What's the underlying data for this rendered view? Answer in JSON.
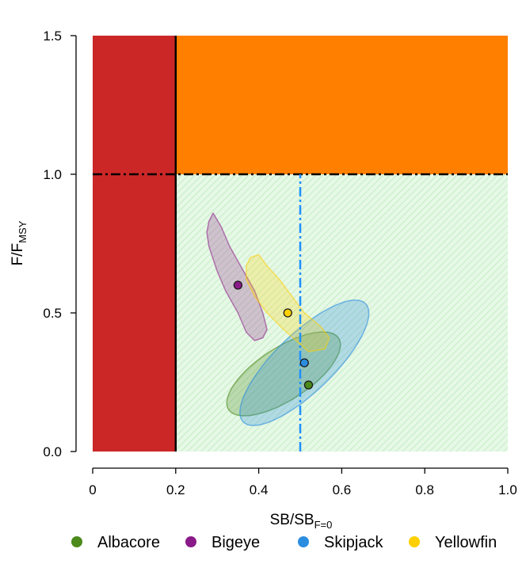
{
  "chart_data": {
    "type": "scatter",
    "title": "",
    "xlabel": {
      "main": "SB/SB",
      "sub": "F=0"
    },
    "ylabel": {
      "main": "F/F",
      "sub": "MSY"
    },
    "xlim": [
      0,
      1
    ],
    "ylim": [
      0,
      1.5
    ],
    "x_ticks": [
      "0",
      "0.2",
      "0.4",
      "0.6",
      "0.8",
      "1.0"
    ],
    "y_ticks": [
      "0.0",
      "0.5",
      "1.0",
      "1.5"
    ],
    "grid": false,
    "regions": [
      {
        "name": "sb-limit-zone",
        "x": [
          0,
          0.2
        ],
        "y": [
          0,
          1.5
        ],
        "color": "#cc2727"
      },
      {
        "name": "overfishing-zone",
        "x": [
          0.2,
          1.0
        ],
        "y": [
          1.0,
          1.5
        ],
        "color": "#ff8000"
      },
      {
        "name": "target-zone",
        "x": [
          0.2,
          1.0
        ],
        "y": [
          0,
          1.0
        ],
        "color": "#e4f7e4"
      }
    ],
    "reference_lines": [
      {
        "name": "limit-reference-point",
        "type": "vertical",
        "value": 0.2,
        "style": "solid",
        "color": "#000000"
      },
      {
        "name": "fmsy-line",
        "type": "horizontal",
        "value": 1.0,
        "style": "dashdot",
        "color": "#000000"
      },
      {
        "name": "target-reference-point",
        "type": "vertical",
        "value": 0.5,
        "style": "dashdot",
        "color": "#1e90ff"
      }
    ],
    "series": [
      {
        "name": "Albacore",
        "color": "#4b8a1b",
        "point": {
          "x": 0.52,
          "y": 0.24
        },
        "region": {
          "type": "ellipse",
          "center": [
            0.46,
            0.28
          ],
          "rx": 0.158,
          "ry": 0.063,
          "angle_deg": -33
        }
      },
      {
        "name": "Bigeye",
        "color": "#8b1a89",
        "point": {
          "x": 0.35,
          "y": 0.6
        },
        "region": {
          "type": "polygon",
          "points": [
            [
              0.28,
              0.83
            ],
            [
              0.29,
              0.86
            ],
            [
              0.31,
              0.81
            ],
            [
              0.33,
              0.74
            ],
            [
              0.36,
              0.66
            ],
            [
              0.39,
              0.58
            ],
            [
              0.41,
              0.5
            ],
            [
              0.42,
              0.44
            ],
            [
              0.41,
              0.41
            ],
            [
              0.39,
              0.4
            ],
            [
              0.37,
              0.43
            ],
            [
              0.35,
              0.5
            ],
            [
              0.32,
              0.58
            ],
            [
              0.3,
              0.65
            ],
            [
              0.28,
              0.74
            ],
            [
              0.275,
              0.79
            ]
          ]
        }
      },
      {
        "name": "Skipjack",
        "color": "#2b8de0",
        "point": {
          "x": 0.51,
          "y": 0.32
        },
        "region": {
          "type": "ellipse",
          "center": [
            0.51,
            0.32
          ],
          "rx": 0.205,
          "ry": 0.07,
          "angle_deg": -44
        }
      },
      {
        "name": "Yellowfin",
        "color": "#ffd000",
        "point": {
          "x": 0.47,
          "y": 0.5
        },
        "region": {
          "type": "polygon",
          "points": [
            [
              0.38,
              0.7
            ],
            [
              0.4,
              0.71
            ],
            [
              0.42,
              0.67
            ],
            [
              0.45,
              0.62
            ],
            [
              0.48,
              0.56
            ],
            [
              0.51,
              0.5
            ],
            [
              0.55,
              0.45
            ],
            [
              0.57,
              0.41
            ],
            [
              0.56,
              0.37
            ],
            [
              0.52,
              0.36
            ],
            [
              0.49,
              0.4
            ],
            [
              0.46,
              0.44
            ],
            [
              0.42,
              0.5
            ],
            [
              0.39,
              0.56
            ],
            [
              0.37,
              0.62
            ],
            [
              0.37,
              0.67
            ]
          ]
        }
      }
    ],
    "legend": {
      "placement": "bottom",
      "entries": [
        "Albacore",
        "Bigeye",
        "Skipjack",
        "Yellowfin"
      ]
    }
  }
}
